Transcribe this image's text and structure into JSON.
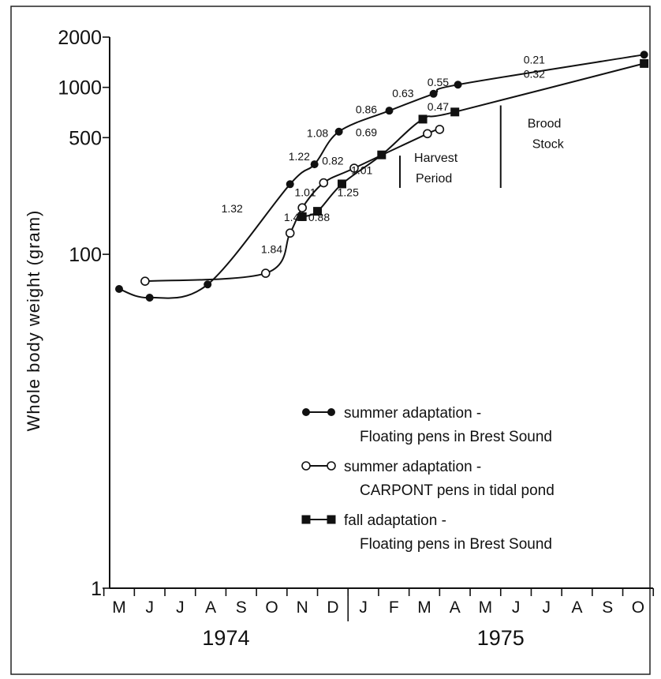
{
  "chart_data": {
    "type": "line",
    "ylabel": "Whole body weight (gram)",
    "yscale": "log",
    "ylim": [
      1,
      2000
    ],
    "y_ticks": [
      {
        "value": 1,
        "label": "1"
      },
      {
        "value": 100,
        "label": "100"
      },
      {
        "value": 500,
        "label": "500"
      },
      {
        "value": 1000,
        "label": "1000"
      },
      {
        "value": 2000,
        "label": "2000"
      }
    ],
    "x_months": [
      "M",
      "J",
      "J",
      "A",
      "S",
      "O",
      "N",
      "D",
      "J",
      "F",
      "M",
      "A",
      "M",
      "J",
      "J",
      "A",
      "S",
      "O"
    ],
    "years": [
      {
        "label": "1974",
        "from": 0,
        "to": 7
      },
      {
        "label": "1975",
        "from": 8,
        "to": 17
      }
    ],
    "series": [
      {
        "key": "summer_brest",
        "marker": "filled-circle",
        "points": [
          {
            "m": 0.0,
            "y": 62
          },
          {
            "m": 1.0,
            "y": 55
          },
          {
            "m": 2.9,
            "y": 66
          },
          {
            "m": 5.6,
            "y": 263
          },
          {
            "m": 6.4,
            "y": 346
          },
          {
            "m": 7.2,
            "y": 543
          },
          {
            "m": 8.85,
            "y": 725
          },
          {
            "m": 10.3,
            "y": 915
          },
          {
            "m": 11.1,
            "y": 1038
          },
          {
            "m": 17.2,
            "y": 1570
          }
        ]
      },
      {
        "key": "summer_carpont",
        "marker": "open-circle",
        "points": [
          {
            "m": 0.85,
            "y": 69
          },
          {
            "m": 4.8,
            "y": 77
          },
          {
            "m": 5.6,
            "y": 134
          },
          {
            "m": 6.0,
            "y": 190
          },
          {
            "m": 6.7,
            "y": 268
          },
          {
            "m": 7.7,
            "y": 328
          },
          {
            "m": 10.1,
            "y": 528
          },
          {
            "m": 10.5,
            "y": 560
          }
        ]
      },
      {
        "key": "fall_brest",
        "marker": "filled-square",
        "points": [
          {
            "m": 6.0,
            "y": 168
          },
          {
            "m": 6.5,
            "y": 181
          },
          {
            "m": 7.3,
            "y": 264
          },
          {
            "m": 8.6,
            "y": 394
          },
          {
            "m": 9.95,
            "y": 645
          },
          {
            "m": 11.0,
            "y": 712
          },
          {
            "m": 17.2,
            "y": 1390
          }
        ]
      }
    ],
    "rate_labels": [
      {
        "text": "1.32",
        "m": 3.7,
        "y": 178
      },
      {
        "text": "1.22",
        "m": 5.9,
        "y": 365
      },
      {
        "text": "1.08",
        "m": 6.5,
        "y": 505
      },
      {
        "text": "0.86",
        "m": 8.1,
        "y": 700
      },
      {
        "text": "0.63",
        "m": 9.3,
        "y": 875
      },
      {
        "text": "0.55",
        "m": 10.45,
        "y": 1020
      },
      {
        "text": "0.21",
        "m": 13.6,
        "y": 1390
      },
      {
        "text": "1.84",
        "m": 5.0,
        "y": 102
      },
      {
        "text": "1.45",
        "m": 5.75,
        "y": 158
      },
      {
        "text": "1.01",
        "m": 6.1,
        "y": 223
      },
      {
        "text": "0.82",
        "m": 7.0,
        "y": 345
      },
      {
        "text": "0.69",
        "m": 8.1,
        "y": 510
      },
      {
        "text": "0.88",
        "m": 6.55,
        "y": 158
      },
      {
        "text": "1.25",
        "m": 7.5,
        "y": 223
      },
      {
        "text": "1.01",
        "m": 7.95,
        "y": 302
      },
      {
        "text": "0.47",
        "m": 10.45,
        "y": 728
      },
      {
        "text": "0.32",
        "m": 13.6,
        "y": 1140
      }
    ],
    "annotations": [
      {
        "lines": [
          "Harvest",
          "Period"
        ],
        "bar_m": 9.2,
        "bar_y": [
          250,
          390
        ]
      },
      {
        "lines": [
          "Brood",
          "Stock"
        ],
        "bar_m": 12.5,
        "bar_y": [
          250,
          780
        ]
      }
    ],
    "legend_placement": "bottom-right",
    "legend": [
      {
        "marker": "filled-circle",
        "line1": "summer adaptation -",
        "line2": "Floating pens in Brest Sound"
      },
      {
        "marker": "open-circle",
        "line1": "summer adaptation -",
        "line2": "CARPONT  pens in tidal pond"
      },
      {
        "marker": "filled-square",
        "line1": "fall adaptation -",
        "line2": "Floating pens in Brest Sound"
      }
    ]
  }
}
